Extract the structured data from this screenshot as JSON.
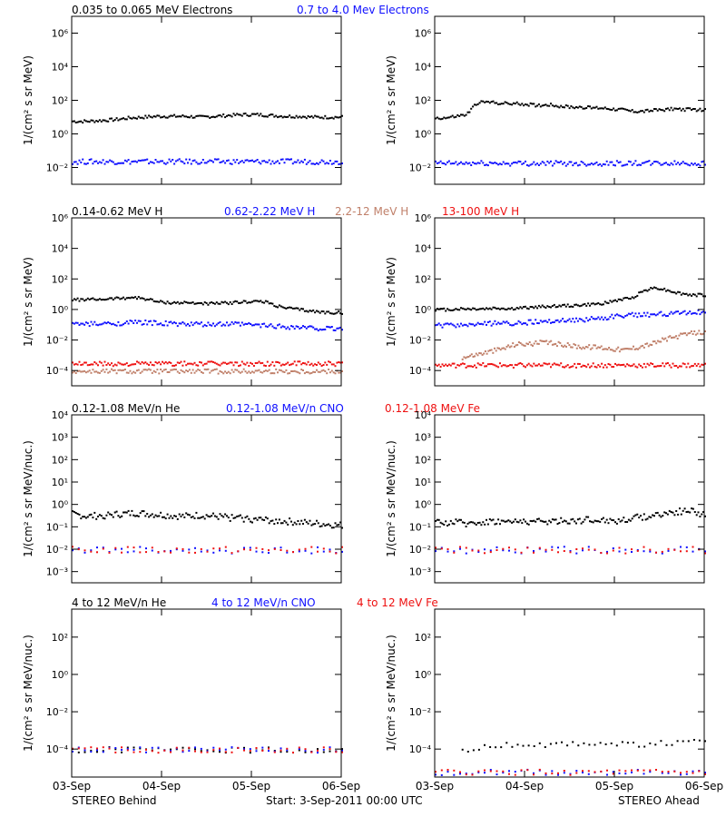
{
  "x_ticks": [
    "03-Sep",
    "04-Sep",
    "05-Sep",
    "06-Sep"
  ],
  "footer": {
    "left": "STEREO Behind",
    "center": "Start:  3-Sep-2011 00:00 UTC",
    "right": "STEREO Ahead"
  },
  "colors": {
    "black": "#000000",
    "blue": "#1010ff",
    "tan": "#c0806a",
    "red": "#ee1111"
  },
  "chart_data": [
    {
      "type": "scatter",
      "row": 0,
      "panel": "STEREO Behind",
      "legend": [
        {
          "text": "0.035 to 0.065 MeV Electrons",
          "color": "black"
        },
        {
          "text": "0.7 to 4.0 Mev Electrons",
          "color": "blue"
        }
      ],
      "ylabel": "1/(cm² s sr MeV)",
      "yscale": "log",
      "ylim_log10": [
        -3,
        7
      ],
      "yticks": [
        {
          "exp": -2,
          "label": "10⁻²"
        },
        {
          "exp": 0,
          "label": "10⁰"
        },
        {
          "exp": 2,
          "label": "10²"
        },
        {
          "exp": 4,
          "label": "10⁴"
        },
        {
          "exp": 6,
          "label": "10⁶"
        }
      ],
      "xlim_days": [
        0,
        3
      ],
      "series": [
        {
          "name": "0.035 to 0.065 MeV Electrons",
          "color": "black",
          "log10": [
            0.8,
            0.8,
            0.85,
            0.9,
            1.0,
            1.05,
            1.1,
            1.1,
            1.1,
            1.05,
            1.1,
            1.15,
            1.2,
            1.2,
            1.15,
            1.1,
            1.1,
            1.05,
            1.05,
            1.05
          ]
        },
        {
          "name": "0.7 to 4.0 Mev Electrons",
          "color": "blue",
          "log10": [
            -1.6,
            -1.6,
            -1.6,
            -1.6,
            -1.6,
            -1.6,
            -1.6,
            -1.6,
            -1.6,
            -1.6
          ]
        }
      ]
    },
    {
      "type": "scatter",
      "row": 0,
      "panel": "STEREO Ahead",
      "ylabel": "1/(cm² s sr MeV)",
      "yscale": "log",
      "ylim_log10": [
        -3,
        7
      ],
      "yticks": [
        {
          "exp": -2,
          "label": "10⁻²"
        },
        {
          "exp": 0,
          "label": "10⁰"
        },
        {
          "exp": 2,
          "label": "10²"
        },
        {
          "exp": 4,
          "label": "10⁴"
        },
        {
          "exp": 6,
          "label": "10⁶"
        }
      ],
      "xlim_days": [
        0,
        3
      ],
      "series": [
        {
          "name": "0.035 to 0.065 MeV Electrons",
          "color": "black",
          "log10": [
            1.0,
            1.0,
            1.1,
            1.2,
            1.9,
            1.95,
            1.9,
            1.85,
            1.85,
            1.8,
            1.75,
            1.8,
            1.7,
            1.65,
            1.65,
            1.6,
            1.6,
            1.55,
            1.5,
            1.4,
            1.4,
            1.45,
            1.5,
            1.55,
            1.5,
            1.5,
            1.45
          ]
        },
        {
          "name": "0.7 to 4.0 Mev Electrons",
          "color": "blue",
          "log10": [
            -1.7,
            -1.7,
            -1.7,
            -1.7,
            -1.7,
            -1.7,
            -1.7,
            -1.7,
            -1.7,
            -1.7
          ]
        }
      ]
    },
    {
      "type": "scatter",
      "row": 1,
      "panel": "STEREO Behind",
      "legend": [
        {
          "text": "0.14-0.62 MeV H",
          "color": "black"
        },
        {
          "text": "0.62-2.22 MeV H",
          "color": "blue"
        },
        {
          "text": "2.2-12 MeV H",
          "color": "tan"
        },
        {
          "text": "13-100 MeV H",
          "color": "red"
        }
      ],
      "ylabel": "1/(cm² s sr MeV)",
      "yscale": "log",
      "ylim_log10": [
        -5,
        6
      ],
      "yticks": [
        {
          "exp": -4,
          "label": "10⁻⁴"
        },
        {
          "exp": -2,
          "label": "10⁻²"
        },
        {
          "exp": 0,
          "label": "10⁰"
        },
        {
          "exp": 2,
          "label": "10²"
        },
        {
          "exp": 4,
          "label": "10⁴"
        },
        {
          "exp": 6,
          "label": "10⁶"
        }
      ],
      "xlim_days": [
        0,
        3
      ],
      "series": [
        {
          "name": "0.14-0.62 MeV H",
          "color": "black",
          "log10": [
            0.7,
            0.7,
            0.72,
            0.75,
            0.8,
            0.85,
            0.75,
            0.55,
            0.5,
            0.5,
            0.48,
            0.45,
            0.45,
            0.5,
            0.55,
            0.6,
            0.5,
            0.2,
            0.1,
            0.0,
            -0.1,
            -0.15,
            -0.15
          ]
        },
        {
          "name": "0.62-2.22 MeV H",
          "color": "blue",
          "log10": [
            -0.9,
            -0.9,
            -0.9,
            -0.85,
            -0.8,
            -0.8,
            -0.85,
            -0.9,
            -0.9,
            -0.95,
            -0.9,
            -0.9,
            -0.95,
            -1.0,
            -1.05,
            -1.1,
            -1.15,
            -1.2,
            -1.2
          ]
        },
        {
          "name": "2.2-12 MeV H",
          "color": "tan",
          "log10": [
            -4.0,
            -4.0,
            -4.0,
            -4.0,
            -4.0,
            -4.0,
            -4.0,
            -4.0
          ]
        },
        {
          "name": "13-100 MeV H",
          "color": "red",
          "log10": [
            -3.5,
            -3.5,
            -3.5,
            -3.5,
            -3.5,
            -3.5,
            -3.5,
            -3.5
          ]
        }
      ]
    },
    {
      "type": "scatter",
      "row": 1,
      "panel": "STEREO Ahead",
      "ylabel": "1/(cm² s sr MeV)",
      "yscale": "log",
      "ylim_log10": [
        -5,
        6
      ],
      "yticks": [
        {
          "exp": -4,
          "label": "10⁻⁴"
        },
        {
          "exp": -2,
          "label": "10⁻²"
        },
        {
          "exp": 0,
          "label": "10⁰"
        },
        {
          "exp": 2,
          "label": "10²"
        },
        {
          "exp": 4,
          "label": "10⁴"
        },
        {
          "exp": 6,
          "label": "10⁶"
        }
      ],
      "xlim_days": [
        0,
        3
      ],
      "series": [
        {
          "name": "0.14-0.62 MeV H",
          "color": "black",
          "log10": [
            0.05,
            0.05,
            0.1,
            0.1,
            0.1,
            0.15,
            0.1,
            0.15,
            0.2,
            0.25,
            0.3,
            0.3,
            0.35,
            0.4,
            0.5,
            0.7,
            0.8,
            1.3,
            1.5,
            1.3,
            1.1,
            1.0,
            1.0
          ]
        },
        {
          "name": "0.62-2.22 MeV H",
          "color": "blue",
          "log10": [
            -1.0,
            -1.0,
            -0.95,
            -0.9,
            -0.85,
            -0.85,
            -0.8,
            -0.75,
            -0.7,
            -0.65,
            -0.6,
            -0.5,
            -0.4,
            -0.3,
            -0.3,
            -0.25,
            -0.2,
            -0.15,
            -0.1
          ]
        },
        {
          "name": "2.2-12 MeV H",
          "color": "tan",
          "log10": [
            -3.9,
            -3.4,
            -3.1,
            -2.9,
            -2.7,
            -2.5,
            -2.2,
            -2.2,
            -2.1,
            -2.2,
            -2.3,
            -2.4,
            -2.4,
            -2.5,
            -2.6,
            -2.4,
            -2.2,
            -1.9,
            -1.7,
            -1.5,
            -1.4
          ]
        },
        {
          "name": "13-100 MeV H",
          "color": "red",
          "log10": [
            -3.6,
            -3.6,
            -3.6,
            -3.6,
            -3.6,
            -3.6,
            -3.6,
            -3.6
          ]
        }
      ]
    },
    {
      "type": "scatter",
      "row": 2,
      "panel": "STEREO Behind",
      "legend": [
        {
          "text": "0.12-1.08 MeV/n He",
          "color": "black"
        },
        {
          "text": "0.12-1.08 MeV/n CNO",
          "color": "blue"
        },
        {
          "text": "0.12-1.08 MeV Fe",
          "color": "red"
        }
      ],
      "ylabel": "1/(cm² s sr MeV/nuc.)",
      "yscale": "log",
      "ylim_log10": [
        -3.5,
        4
      ],
      "yticks": [
        {
          "exp": -3,
          "label": "10⁻³"
        },
        {
          "exp": -2,
          "label": "10⁻²"
        },
        {
          "exp": -1,
          "label": "10⁻¹"
        },
        {
          "exp": 0,
          "label": "10⁰"
        },
        {
          "exp": 1,
          "label": "10¹"
        },
        {
          "exp": 2,
          "label": "10²"
        },
        {
          "exp": 3,
          "label": "10³"
        },
        {
          "exp": 4,
          "label": "10⁴"
        }
      ],
      "xlim_days": [
        0,
        3
      ],
      "series": [
        {
          "name": "0.12-1.08 MeV/n He",
          "color": "black",
          "log10": [
            -0.4,
            -0.5,
            -0.45,
            -0.4,
            -0.35,
            -0.4,
            -0.45,
            -0.5,
            -0.45,
            -0.5,
            -0.55,
            -0.6,
            -0.65,
            -0.7,
            -0.75,
            -0.8,
            -0.85,
            -0.9
          ]
        },
        {
          "name": "0.12-1.08 MeV/n CNO",
          "color": "blue",
          "log10": [
            -2.0,
            -2.0,
            -2.0,
            -2.0,
            -2.0,
            -2.0
          ]
        },
        {
          "name": "0.12-1.08 MeV Fe",
          "color": "red",
          "log10": [
            -2.0,
            -2.0,
            -2.0,
            -2.0,
            -2.0,
            -2.0
          ]
        }
      ]
    },
    {
      "type": "scatter",
      "row": 2,
      "panel": "STEREO Ahead",
      "ylabel": "1/(cm² s sr MeV/nuc.)",
      "yscale": "log",
      "ylim_log10": [
        -3.5,
        4
      ],
      "yticks": [
        {
          "exp": -3,
          "label": "10⁻³"
        },
        {
          "exp": -2,
          "label": "10⁻²"
        },
        {
          "exp": -1,
          "label": "10⁻¹"
        },
        {
          "exp": 0,
          "label": "10⁰"
        },
        {
          "exp": 1,
          "label": "10¹"
        },
        {
          "exp": 2,
          "label": "10²"
        },
        {
          "exp": 3,
          "label": "10³"
        },
        {
          "exp": 4,
          "label": "10⁴"
        }
      ],
      "xlim_days": [
        0,
        3
      ],
      "series": [
        {
          "name": "0.12-1.08 MeV/n He",
          "color": "black",
          "log10": [
            -0.8,
            -0.75,
            -0.8,
            -0.75,
            -0.7,
            -0.75,
            -0.7,
            -0.75,
            -0.7,
            -0.7,
            -0.65,
            -0.65,
            -0.7,
            -0.6,
            -0.5,
            -0.4,
            -0.3,
            -0.25,
            -0.4
          ]
        },
        {
          "name": "0.12-1.08 MeV/n CNO",
          "color": "blue",
          "log10": [
            -2.0,
            -2.0,
            -2.0,
            -2.0,
            -2.0,
            -2.0
          ]
        },
        {
          "name": "0.12-1.08 MeV Fe",
          "color": "red",
          "log10": [
            -2.0,
            -2.0,
            -2.0,
            -2.0,
            -2.0,
            -2.0
          ]
        }
      ]
    },
    {
      "type": "scatter",
      "row": 3,
      "panel": "STEREO Behind",
      "legend": [
        {
          "text": "4 to 12 MeV/n He",
          "color": "black"
        },
        {
          "text": "4 to 12 MeV/n CNO",
          "color": "blue"
        },
        {
          "text": "4 to 12 MeV Fe",
          "color": "red"
        }
      ],
      "ylabel": "1/(cm² s sr MeV/nuc.)",
      "yscale": "log",
      "ylim_log10": [
        -5.5,
        3.5
      ],
      "yticks": [
        {
          "exp": -4,
          "label": "10⁻⁴"
        },
        {
          "exp": -2,
          "label": "10⁻²"
        },
        {
          "exp": 0,
          "label": "10⁰"
        },
        {
          "exp": 2,
          "label": "10²"
        }
      ],
      "xlim_days": [
        0,
        3
      ],
      "series": [
        {
          "name": "4 to 12 MeV/n He",
          "color": "black",
          "log10": [
            -4.0,
            -4.0,
            -4.0,
            -4.0
          ]
        },
        {
          "name": "4 to 12 MeV/n CNO",
          "color": "blue",
          "log10": [
            -4.0,
            -4.0
          ]
        },
        {
          "name": "4 to 12 MeV Fe",
          "color": "red",
          "log10": [
            -4.0
          ]
        }
      ]
    },
    {
      "type": "scatter",
      "row": 3,
      "panel": "STEREO Ahead",
      "ylabel": "1/(cm² s sr MeV/nuc.)",
      "yscale": "log",
      "ylim_log10": [
        -5.5,
        3.5
      ],
      "yticks": [
        {
          "exp": -4,
          "label": "10⁻⁴"
        },
        {
          "exp": -2,
          "label": "10⁻²"
        },
        {
          "exp": 0,
          "label": "10⁰"
        },
        {
          "exp": 2,
          "label": "10²"
        }
      ],
      "xlim_days": [
        0,
        3
      ],
      "series": [
        {
          "name": "4 to 12 MeV/n He",
          "color": "black",
          "log10": [
            -4.0,
            -4.0,
            -3.8,
            -3.7,
            -3.7,
            -3.6,
            -3.7,
            -3.7,
            -3.6,
            -3.6
          ]
        },
        {
          "name": "4 to 12 MeV/n CNO",
          "color": "blue",
          "log10": [
            -5.2,
            -5.2,
            -5.2
          ]
        },
        {
          "name": "4 to 12 MeV Fe",
          "color": "red",
          "log10": [
            -5.2
          ]
        }
      ]
    }
  ]
}
